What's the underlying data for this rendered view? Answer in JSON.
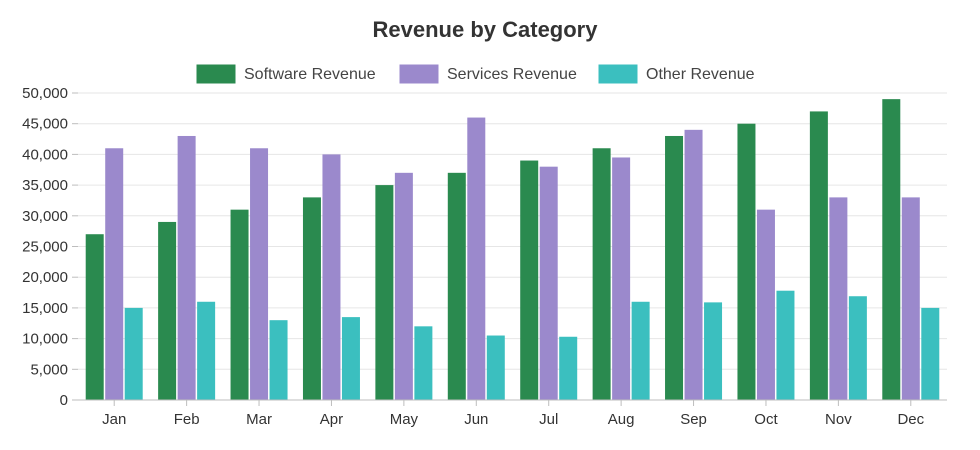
{
  "chart_data": {
    "type": "bar",
    "title": "Revenue by Category",
    "xlabel": "",
    "ylabel": "",
    "categories": [
      "Jan",
      "Feb",
      "Mar",
      "Apr",
      "May",
      "Jun",
      "Jul",
      "Aug",
      "Sep",
      "Oct",
      "Nov",
      "Dec"
    ],
    "series": [
      {
        "name": "Software Revenue",
        "color": "#2a8a4f",
        "values": [
          27000,
          29000,
          31000,
          33000,
          35000,
          37000,
          39000,
          41000,
          43000,
          45000,
          47000,
          49000
        ]
      },
      {
        "name": "Services Revenue",
        "color": "#9b89cc",
        "values": [
          41000,
          43000,
          41000,
          40000,
          37000,
          46000,
          38000,
          39500,
          44000,
          31000,
          33000,
          33000
        ]
      },
      {
        "name": "Other Revenue",
        "color": "#3bbfbf",
        "values": [
          15000,
          16000,
          13000,
          13500,
          12000,
          10500,
          10300,
          16000,
          15900,
          17800,
          16900,
          15000
        ]
      }
    ],
    "ylim": [
      0,
      50000
    ],
    "yticks": [
      "0",
      "5,000",
      "10,000",
      "15,000",
      "20,000",
      "25,000",
      "30,000",
      "35,000",
      "40,000",
      "45,000",
      "50,000"
    ],
    "ytick_values": [
      0,
      5000,
      10000,
      15000,
      20000,
      25000,
      30000,
      35000,
      40000,
      45000,
      50000
    ],
    "grid": true,
    "legend_position": "top-center"
  }
}
